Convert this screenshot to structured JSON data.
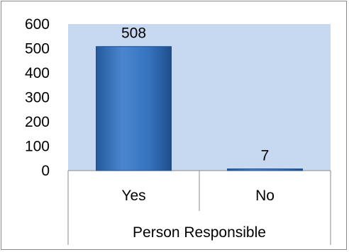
{
  "chart_data": {
    "type": "bar",
    "categories": [
      "Yes",
      "No"
    ],
    "values": [
      508,
      7
    ],
    "title": "",
    "xlabel": "Person Responsible",
    "ylabel": "",
    "ylim": [
      0,
      600
    ],
    "yticks": [
      0,
      100,
      200,
      300,
      400,
      500,
      600
    ],
    "grid": false,
    "legend": "none",
    "colors": {
      "plot_background": "#c6d9f1",
      "bar_fill": "#2f6db5",
      "bar_highlight": "#5b92d8",
      "bar_edge": "#1f4e8c",
      "axis_line": "#8a8a8a"
    }
  }
}
